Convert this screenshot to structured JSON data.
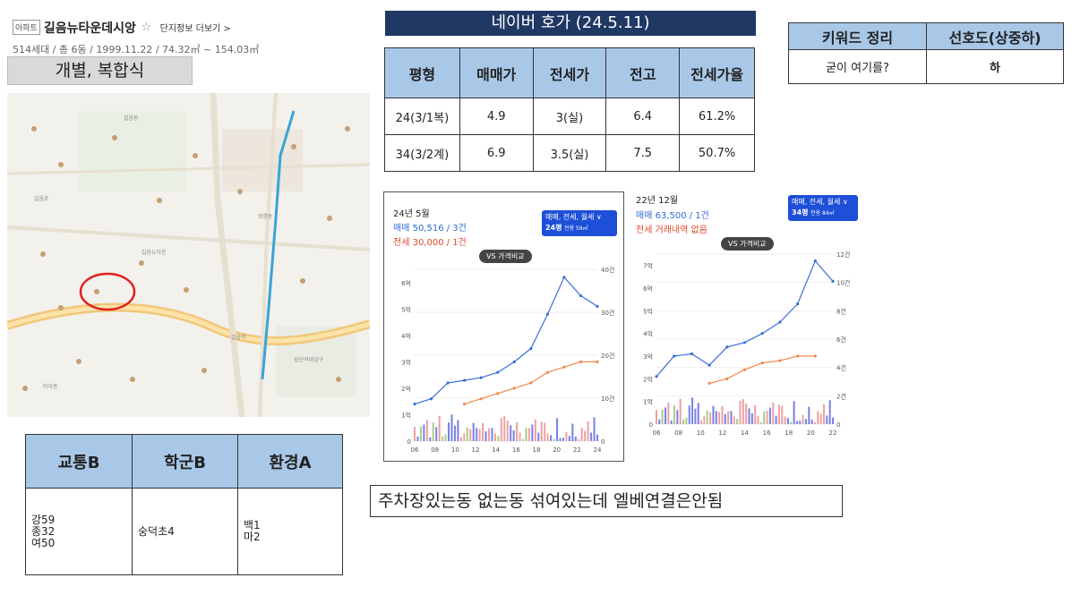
{
  "header": {
    "type_badge": "아파트",
    "apt_name": "길음뉴타운데시앙",
    "more": "단지정보 더보기 >",
    "sub": "514세대 / 총 6동 / 1999.11.22 / 74.32㎡ ~ 154.03㎡"
  },
  "heating": "개별, 복합식",
  "naver": {
    "title": "네이버 호가 (24.5.11)",
    "headers": [
      "평형",
      "매매가",
      "전세가",
      "전고",
      "전세가율"
    ],
    "rows": [
      [
        "24(3/1복)",
        "4.9",
        "3(실)",
        "6.4",
        "61.2%"
      ],
      [
        "34(3/2계)",
        "6.9",
        "3.5(실)",
        "7.5",
        "50.7%"
      ]
    ]
  },
  "keyword": {
    "headers": [
      "키워드 정리",
      "선호도(상중하)"
    ],
    "row": [
      "굳이 여기를?",
      "하"
    ]
  },
  "eval": {
    "headers": [
      "교통B",
      "학군B",
      "환경A"
    ],
    "cells": [
      [
        "강59",
        "종32",
        "여50"
      ],
      [
        "숭덕초4"
      ],
      [
        "백1",
        "마2"
      ]
    ]
  },
  "note": "주차장있는동 없는동 섞여있는데 엘베연결은안됨",
  "map": {
    "labels": [
      "길음뉴타운",
      "길음동",
      "길음초",
      "정릉동",
      "성신여대입구",
      "미아동",
      "길음역"
    ]
  },
  "chart1": {
    "date": "24년 5월",
    "sale": "매매 50,516 / 3건",
    "jeonse": "전세 30,000 / 1건",
    "sel": "매매, 전세, 월세 ∨",
    "size": "24평",
    "size_sub": "전용 59㎡",
    "vs": "VS 가격비교"
  },
  "chart2": {
    "date": "22년 12월",
    "sale": "매매 63,500 / 1건",
    "jeonse": "전세 거래내역 없음",
    "sel": "매매, 전세, 월세 ∨",
    "size": "34평",
    "size_sub": "전용 84㎡",
    "vs": "VS 가격비교"
  },
  "chart_data": [
    {
      "type": "line",
      "x_ticks": [
        "06년",
        "08년",
        "10년",
        "12년",
        "14년",
        "16년",
        "18년",
        "20년",
        "22년",
        "24년"
      ],
      "y_left_ticks": [
        "0",
        "1억",
        "2억",
        "3억",
        "4억",
        "5억",
        "6억"
      ],
      "y_right_ticks": [
        "0",
        "10건",
        "20건",
        "30건",
        "40건"
      ],
      "ylim": [
        0,
        6.5
      ],
      "series": [
        {
          "values": [
            1.4,
            1.6,
            2.2,
            2.3,
            2.4,
            2.6,
            3.0,
            3.5,
            4.8,
            6.2,
            5.5,
            5.1
          ]
        },
        {
          "values": [
            null,
            null,
            null,
            1.4,
            1.6,
            1.8,
            2.0,
            2.2,
            2.6,
            2.8,
            3.0,
            3.0
          ]
        }
      ],
      "colors": {
        "sale": "#3a6fd8",
        "jeonse": "#f08a4b",
        "volume": "#5560e0"
      }
    },
    {
      "type": "line",
      "x_ticks": [
        "06년",
        "08년",
        "10년",
        "12년",
        "14년",
        "16년",
        "18년",
        "20년",
        "22년"
      ],
      "y_left_ticks": [
        "0",
        "1억",
        "2억",
        "3억",
        "4억",
        "5억",
        "6억",
        "7억"
      ],
      "y_right_ticks": [
        "0",
        "2건",
        "4건",
        "6건",
        "8건",
        "10건",
        "12건"
      ],
      "ylim": [
        0,
        7.5
      ],
      "series": [
        {
          "values": [
            2.1,
            3.0,
            3.1,
            2.6,
            3.4,
            3.6,
            4.0,
            4.5,
            5.3,
            7.2,
            6.3
          ]
        },
        {
          "values": [
            null,
            null,
            null,
            1.8,
            2.0,
            2.4,
            2.7,
            2.8,
            3.0,
            3.0,
            null
          ]
        }
      ],
      "colors": {
        "sale": "#3a6fd8",
        "jeonse": "#f08a4b",
        "volume": "#5560e0"
      }
    }
  ]
}
